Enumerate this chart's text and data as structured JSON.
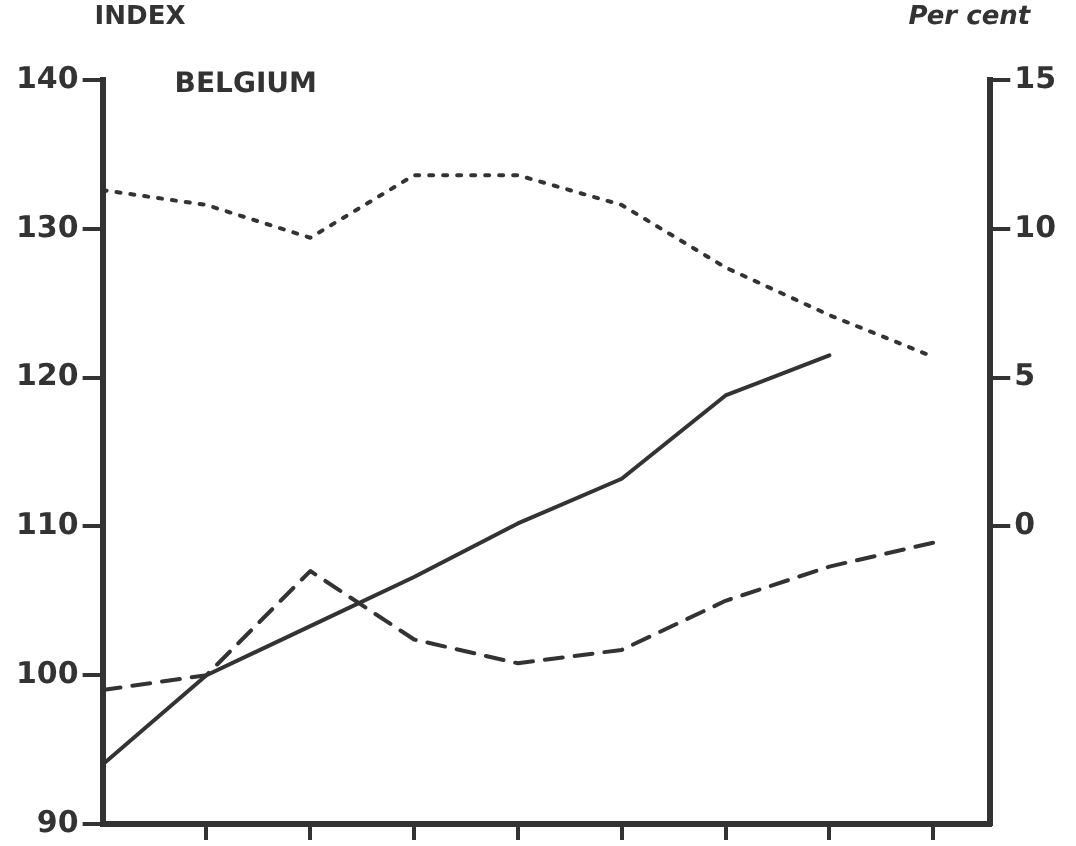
{
  "chart_data": {
    "type": "line",
    "title": "BELGIUM",
    "ylabel": "INDEX",
    "y2label": "Per cent",
    "categories": [
      null,
      null,
      null,
      null,
      null,
      null,
      null,
      null,
      null
    ],
    "series": [
      {
        "color": "#333333",
        "line_style": "solid",
        "values": [
          94,
          100,
          103.3,
          106.6,
          110.2,
          113.2,
          118.8,
          121.5,
          null
        ]
      },
      {
        "color": "#333333",
        "line_style": "dashed",
        "values": [
          99,
          100,
          107,
          102.4,
          100.8,
          101.7,
          105,
          107.3,
          108.9
        ]
      },
      {
        "color": "#333333",
        "line_style": "dotted",
        "axis": "y2",
        "values": [
          11.3,
          10.8,
          9.7,
          11.8,
          11.8,
          10.8,
          8.7,
          7.1,
          5.7
        ]
      }
    ],
    "ylim": [
      90,
      140
    ],
    "yticks": [
      90,
      100,
      110,
      120,
      130,
      140
    ],
    "y2lim": [
      -10,
      15
    ],
    "y2ticks": [
      0,
      5,
      10,
      15
    ],
    "grid": false,
    "legend": false,
    "marker": "none",
    "tick_labels": "y"
  }
}
